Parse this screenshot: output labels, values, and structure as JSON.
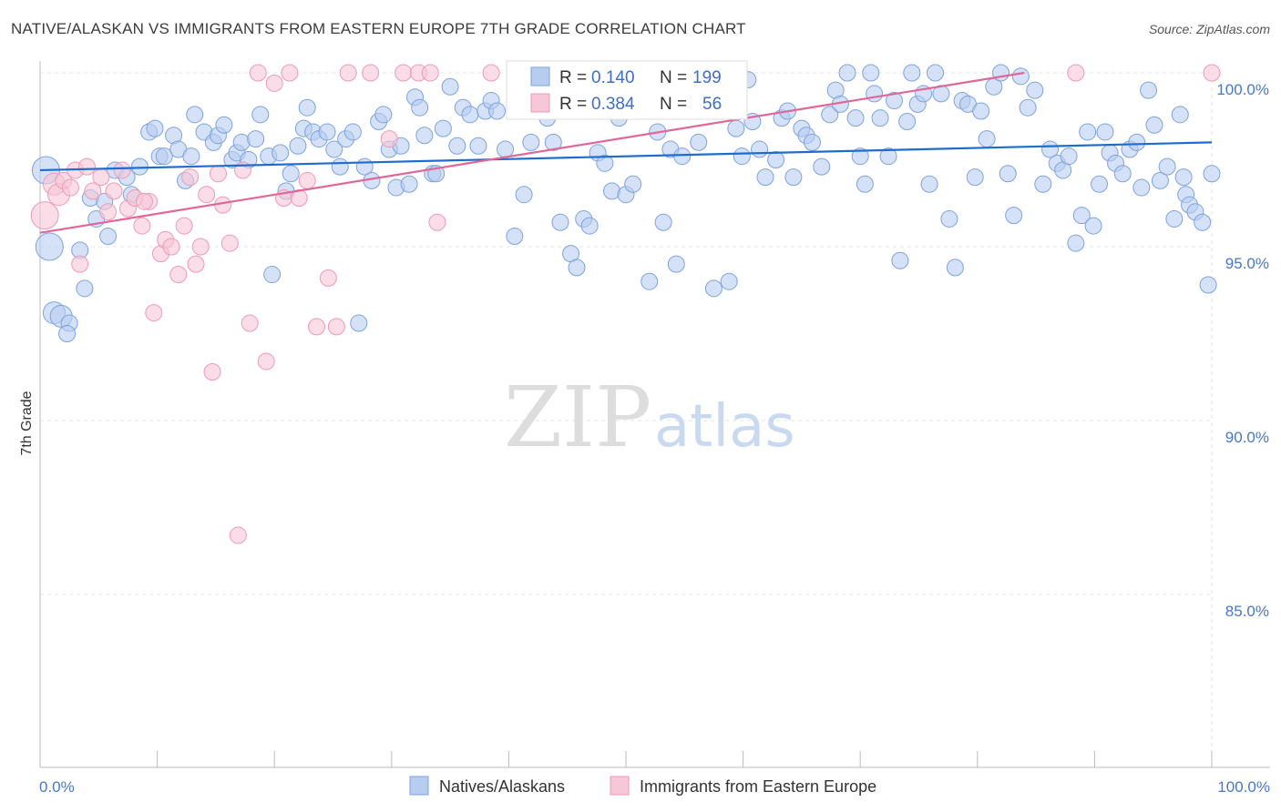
{
  "header": {
    "title": "NATIVE/ALASKAN VS IMMIGRANTS FROM EASTERN EUROPE 7TH GRADE CORRELATION CHART",
    "source": "Source: ZipAtlas.com"
  },
  "watermark": {
    "zip": "ZIP",
    "atlas": "atlas"
  },
  "colors": {
    "blue_fill": "#b7cdf0",
    "blue_stroke": "#7ea3de",
    "blue_line": "#1f6ccf",
    "pink_fill": "#f6c7d6",
    "pink_stroke": "#ee9ab5",
    "pink_line": "#e0679a",
    "grid": "#e6e6e6",
    "tick_text": "#4a78c4"
  },
  "stats": {
    "r_label": "R =",
    "n_label": "N =",
    "rows": [
      {
        "r": "0.140",
        "n": "199"
      },
      {
        "r": "0.384",
        "n": "56"
      }
    ]
  },
  "chart_data": {
    "type": "scatter",
    "title": "NATIVE/ALASKAN VS IMMIGRANTS FROM EASTERN EUROPE 7TH GRADE CORRELATION CHART",
    "xlabel": "",
    "ylabel": "7th Grade",
    "xlim": [
      0,
      100
    ],
    "ylim": [
      80.5,
      100.8
    ],
    "x_tick_labels": {
      "left": "0.0%",
      "right": "100.0%"
    },
    "y_ticks": [
      {
        "value": 100,
        "label": "100.0%"
      },
      {
        "value": 95,
        "label": "95.0%"
      },
      {
        "value": 90,
        "label": "90.0%"
      },
      {
        "value": 85,
        "label": "85.0%"
      }
    ],
    "grid": true,
    "legend_position": "bottom-center",
    "series": [
      {
        "name": "Natives/Alaskans",
        "color": "#b7cdf0",
        "trend": {
          "x0": 0,
          "y0": 97.2,
          "x1": 100,
          "y1": 98.0
        },
        "points": [
          [
            0.5,
            97.2
          ],
          [
            0.8,
            95.0
          ],
          [
            1.2,
            93.1
          ],
          [
            1.8,
            93.0
          ],
          [
            2.5,
            92.8
          ],
          [
            2.3,
            92.5
          ],
          [
            3.4,
            94.9
          ],
          [
            3.8,
            93.8
          ],
          [
            4.3,
            96.4
          ],
          [
            4.8,
            95.8
          ],
          [
            5.5,
            96.3
          ],
          [
            5.8,
            95.3
          ],
          [
            6.4,
            97.2
          ],
          [
            7.4,
            97.0
          ],
          [
            7.8,
            96.5
          ],
          [
            8.5,
            97.3
          ],
          [
            9.3,
            98.3
          ],
          [
            9.8,
            98.4
          ],
          [
            10.2,
            97.6
          ],
          [
            10.6,
            97.6
          ],
          [
            11.4,
            98.2
          ],
          [
            11.8,
            97.8
          ],
          [
            12.4,
            96.9
          ],
          [
            12.9,
            97.6
          ],
          [
            13.2,
            98.8
          ],
          [
            14.0,
            98.3
          ],
          [
            14.8,
            98.0
          ],
          [
            15.2,
            98.2
          ],
          [
            15.7,
            98.5
          ],
          [
            16.4,
            97.5
          ],
          [
            16.8,
            97.7
          ],
          [
            17.2,
            98.0
          ],
          [
            17.8,
            97.5
          ],
          [
            18.4,
            98.1
          ],
          [
            18.8,
            98.8
          ],
          [
            19.5,
            97.6
          ],
          [
            19.8,
            94.2
          ],
          [
            20.5,
            97.7
          ],
          [
            21.0,
            96.6
          ],
          [
            21.4,
            97.1
          ],
          [
            22.0,
            97.9
          ],
          [
            22.5,
            98.4
          ],
          [
            22.8,
            99.0
          ],
          [
            23.3,
            98.3
          ],
          [
            23.8,
            98.1
          ],
          [
            24.5,
            98.3
          ],
          [
            25.1,
            97.8
          ],
          [
            25.6,
            97.3
          ],
          [
            26.1,
            98.1
          ],
          [
            26.7,
            98.3
          ],
          [
            27.2,
            92.8
          ],
          [
            27.7,
            97.3
          ],
          [
            28.3,
            96.9
          ],
          [
            28.9,
            98.6
          ],
          [
            29.3,
            98.8
          ],
          [
            29.8,
            97.8
          ],
          [
            30.4,
            96.7
          ],
          [
            30.8,
            97.9
          ],
          [
            31.5,
            96.8
          ],
          [
            32.0,
            99.3
          ],
          [
            32.4,
            99.0
          ],
          [
            32.8,
            98.2
          ],
          [
            33.5,
            97.1
          ],
          [
            33.8,
            97.1
          ],
          [
            34.4,
            98.4
          ],
          [
            35.0,
            99.6
          ],
          [
            35.6,
            97.9
          ],
          [
            36.1,
            99.0
          ],
          [
            36.7,
            98.8
          ],
          [
            37.4,
            97.9
          ],
          [
            38.0,
            98.9
          ],
          [
            38.5,
            99.2
          ],
          [
            39.0,
            98.9
          ],
          [
            39.7,
            97.8
          ],
          [
            40.5,
            95.3
          ],
          [
            40.9,
            99.4
          ],
          [
            41.3,
            96.5
          ],
          [
            41.9,
            98.0
          ],
          [
            42.6,
            99.0
          ],
          [
            43.3,
            98.7
          ],
          [
            43.8,
            98.0
          ],
          [
            44.4,
            95.7
          ],
          [
            45.3,
            94.8
          ],
          [
            45.8,
            94.4
          ],
          [
            46.4,
            95.8
          ],
          [
            46.9,
            95.6
          ],
          [
            47.6,
            97.7
          ],
          [
            48.2,
            97.4
          ],
          [
            48.8,
            96.6
          ],
          [
            49.4,
            98.7
          ],
          [
            50.0,
            96.5
          ],
          [
            50.6,
            96.8
          ],
          [
            51.3,
            99.7
          ],
          [
            52.0,
            94.0
          ],
          [
            52.7,
            98.3
          ],
          [
            53.2,
            95.7
          ],
          [
            53.8,
            97.8
          ],
          [
            54.3,
            94.5
          ],
          [
            54.8,
            97.6
          ],
          [
            55.4,
            99.1
          ],
          [
            56.2,
            98.0
          ],
          [
            56.8,
            99.6
          ],
          [
            57.5,
            93.8
          ],
          [
            58.1,
            99.0
          ],
          [
            58.8,
            94.0
          ],
          [
            59.4,
            98.4
          ],
          [
            59.9,
            97.6
          ],
          [
            60.4,
            99.8
          ],
          [
            60.8,
            98.6
          ],
          [
            61.4,
            97.8
          ],
          [
            61.9,
            97.0
          ],
          [
            62.8,
            97.5
          ],
          [
            63.3,
            98.7
          ],
          [
            63.8,
            98.9
          ],
          [
            64.3,
            97.0
          ],
          [
            65.0,
            98.4
          ],
          [
            65.4,
            98.2
          ],
          [
            65.9,
            98.0
          ],
          [
            66.7,
            97.3
          ],
          [
            67.4,
            98.8
          ],
          [
            67.9,
            99.5
          ],
          [
            68.3,
            99.1
          ],
          [
            68.9,
            100.0
          ],
          [
            69.6,
            98.7
          ],
          [
            70.0,
            97.6
          ],
          [
            70.4,
            96.8
          ],
          [
            70.9,
            100.0
          ],
          [
            71.2,
            99.4
          ],
          [
            71.7,
            98.7
          ],
          [
            72.4,
            97.6
          ],
          [
            72.9,
            99.2
          ],
          [
            73.4,
            94.6
          ],
          [
            74.0,
            98.6
          ],
          [
            74.4,
            100.0
          ],
          [
            74.9,
            99.1
          ],
          [
            75.4,
            99.4
          ],
          [
            75.9,
            96.8
          ],
          [
            76.4,
            100.0
          ],
          [
            76.9,
            99.4
          ],
          [
            77.6,
            95.8
          ],
          [
            78.1,
            94.4
          ],
          [
            78.7,
            99.2
          ],
          [
            79.2,
            99.1
          ],
          [
            79.8,
            97.0
          ],
          [
            80.3,
            98.9
          ],
          [
            80.8,
            98.1
          ],
          [
            81.4,
            99.6
          ],
          [
            82.0,
            100.0
          ],
          [
            82.6,
            97.1
          ],
          [
            83.1,
            95.9
          ],
          [
            83.7,
            99.9
          ],
          [
            84.3,
            99.0
          ],
          [
            84.9,
            99.5
          ],
          [
            85.6,
            96.8
          ],
          [
            86.2,
            97.8
          ],
          [
            86.8,
            97.4
          ],
          [
            87.3,
            97.2
          ],
          [
            87.8,
            97.6
          ],
          [
            88.4,
            95.1
          ],
          [
            88.9,
            95.9
          ],
          [
            89.4,
            98.3
          ],
          [
            89.9,
            95.6
          ],
          [
            90.4,
            96.8
          ],
          [
            90.9,
            98.3
          ],
          [
            91.3,
            97.7
          ],
          [
            91.8,
            97.4
          ],
          [
            92.4,
            97.1
          ],
          [
            93.0,
            97.8
          ],
          [
            93.6,
            98.0
          ],
          [
            94.0,
            96.7
          ],
          [
            94.6,
            99.5
          ],
          [
            95.1,
            98.5
          ],
          [
            95.6,
            96.9
          ],
          [
            96.2,
            97.3
          ],
          [
            96.8,
            95.8
          ],
          [
            97.3,
            98.8
          ],
          [
            97.8,
            96.5
          ],
          [
            98.1,
            96.2
          ],
          [
            98.6,
            96.0
          ],
          [
            99.2,
            95.7
          ],
          [
            99.7,
            93.9
          ],
          [
            100.0,
            97.1
          ],
          [
            97.6,
            97.0
          ]
        ]
      },
      {
        "name": "Immigrants from Eastern Europe",
        "color": "#f6c7d6",
        "trend": {
          "x0": 0,
          "y0": 95.4,
          "x1": 84,
          "y1": 100.0
        },
        "points": [
          [
            0.4,
            95.9
          ],
          [
            1.2,
            96.8
          ],
          [
            1.6,
            96.5
          ],
          [
            2.0,
            96.9
          ],
          [
            2.6,
            96.7
          ],
          [
            3.0,
            97.2
          ],
          [
            3.4,
            94.5
          ],
          [
            4.0,
            97.3
          ],
          [
            4.5,
            96.6
          ],
          [
            5.2,
            97.0
          ],
          [
            5.8,
            96.0
          ],
          [
            6.3,
            96.6
          ],
          [
            7.0,
            97.2
          ],
          [
            7.5,
            96.1
          ],
          [
            8.1,
            96.4
          ],
          [
            8.7,
            95.6
          ],
          [
            9.3,
            96.3
          ],
          [
            9.7,
            93.1
          ],
          [
            10.3,
            94.8
          ],
          [
            10.7,
            95.2
          ],
          [
            11.2,
            95.0
          ],
          [
            11.8,
            94.2
          ],
          [
            12.3,
            95.6
          ],
          [
            12.8,
            97.0
          ],
          [
            13.3,
            94.5
          ],
          [
            13.7,
            95.0
          ],
          [
            14.2,
            96.5
          ],
          [
            14.7,
            91.4
          ],
          [
            15.2,
            97.1
          ],
          [
            15.6,
            96.2
          ],
          [
            16.2,
            95.1
          ],
          [
            16.9,
            86.7
          ],
          [
            17.3,
            97.2
          ],
          [
            17.9,
            92.8
          ],
          [
            18.6,
            100.0
          ],
          [
            19.3,
            91.7
          ],
          [
            20.0,
            99.7
          ],
          [
            20.8,
            96.4
          ],
          [
            21.3,
            100.0
          ],
          [
            22.1,
            96.4
          ],
          [
            22.8,
            96.9
          ],
          [
            23.6,
            92.7
          ],
          [
            24.6,
            94.1
          ],
          [
            25.3,
            92.7
          ],
          [
            26.3,
            100.0
          ],
          [
            28.2,
            100.0
          ],
          [
            29.8,
            98.1
          ],
          [
            31.0,
            100.0
          ],
          [
            32.3,
            100.0
          ],
          [
            33.3,
            100.0
          ],
          [
            33.9,
            95.7
          ],
          [
            38.5,
            100.0
          ],
          [
            42.8,
            100.0
          ],
          [
            88.4,
            100.0
          ],
          [
            100.0,
            100.0
          ],
          [
            8.9,
            96.3
          ]
        ]
      }
    ]
  },
  "legend": {
    "items": [
      {
        "label": "Natives/Alaskans"
      },
      {
        "label": "Immigrants from Eastern Europe"
      }
    ]
  }
}
